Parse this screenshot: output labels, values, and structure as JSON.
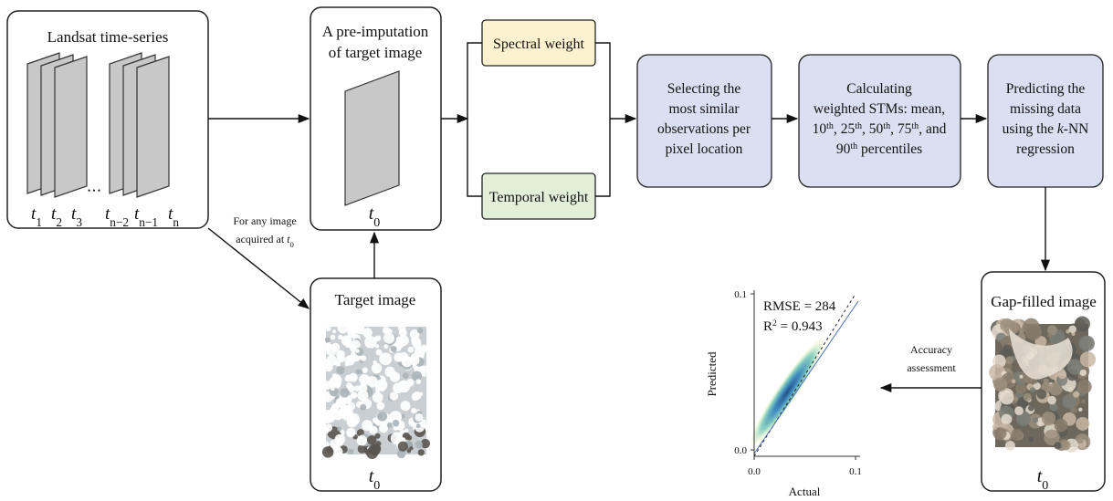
{
  "landsat": {
    "title": [
      [
        {
          "text": "Landsat time-series"
        }
      ]
    ],
    "time_labels": [
      [
        {
          "italic": "t"
        },
        {
          "sub": "1"
        }
      ],
      [
        {
          "italic": "t"
        },
        {
          "sub": "2"
        }
      ],
      [
        {
          "italic": "t"
        },
        {
          "sub": "3"
        }
      ],
      [
        {
          "italic": "t"
        },
        {
          "sub": "n−2"
        }
      ],
      [
        {
          "italic": "t"
        },
        {
          "sub": "n−1"
        }
      ],
      [
        {
          "italic": "t"
        },
        {
          "sub": "n"
        }
      ]
    ],
    "ellipsis": "• • •"
  },
  "pre_imputation": {
    "title": [
      [
        {
          "text": "A pre-imputation"
        }
      ],
      [
        {
          "text": "of target image"
        }
      ]
    ],
    "time": [
      [
        {
          "italic": "t"
        },
        {
          "sub": "0"
        }
      ]
    ]
  },
  "annotation": [
    [
      {
        "text": "For any image"
      }
    ],
    [
      {
        "text": "acquired at "
      },
      {
        "italic": "t"
      },
      {
        "sub": "0"
      }
    ]
  ],
  "target": {
    "title": [
      [
        {
          "text": "Target image"
        }
      ]
    ],
    "time": [
      [
        {
          "italic": "t"
        },
        {
          "sub": "0"
        }
      ]
    ]
  },
  "weights": {
    "spectral": [
      [
        {
          "text": "Spectral weight"
        }
      ]
    ],
    "temporal": [
      [
        {
          "text": "Temporal weight"
        }
      ]
    ]
  },
  "steps": [
    [
      [
        {
          "text": "Selecting the"
        }
      ],
      [
        {
          "text": "most similar"
        }
      ],
      [
        {
          "text": "observations per"
        }
      ],
      [
        {
          "text": "pixel location"
        }
      ]
    ],
    [
      [
        {
          "text": "Calculating"
        }
      ],
      [
        {
          "text": "weighted STMs: mean,"
        }
      ],
      [
        {
          "text": "10"
        },
        {
          "sup": "th"
        },
        {
          "text": ", 25"
        },
        {
          "sup": "th"
        },
        {
          "text": ", 50"
        },
        {
          "sup": "th"
        },
        {
          "text": ", 75"
        },
        {
          "sup": "th"
        },
        {
          "text": ", and"
        }
      ],
      [
        {
          "text": "90"
        },
        {
          "sup": "th"
        },
        {
          "text": " percentiles"
        }
      ]
    ],
    [
      [
        {
          "text": "Predicting the"
        }
      ],
      [
        {
          "text": "missing data"
        }
      ],
      [
        {
          "text": "using the "
        },
        {
          "italic": "k"
        },
        {
          "text": "-NN"
        }
      ],
      [
        {
          "text": "regression"
        }
      ]
    ]
  ],
  "gap_filled": {
    "title": [
      [
        {
          "text": "Gap-filled image"
        }
      ]
    ],
    "time": [
      [
        {
          "italic": "t"
        },
        {
          "sub": "0"
        }
      ]
    ]
  },
  "accuracy": [
    [
      {
        "text": "Accuracy"
      }
    ],
    [
      {
        "text": "assessment"
      }
    ]
  ],
  "plot": {
    "stats": [
      [
        {
          "text": "RMSE = 284"
        }
      ],
      [
        {
          "text": "R"
        },
        {
          "sup": "2"
        },
        {
          "text": " = 0.943"
        }
      ]
    ],
    "x_label": "Actual",
    "y_label": "Predicted",
    "x_ticks": [
      "0.0",
      "0.1"
    ],
    "y_ticks": [
      "0.0",
      "0.1"
    ]
  }
}
